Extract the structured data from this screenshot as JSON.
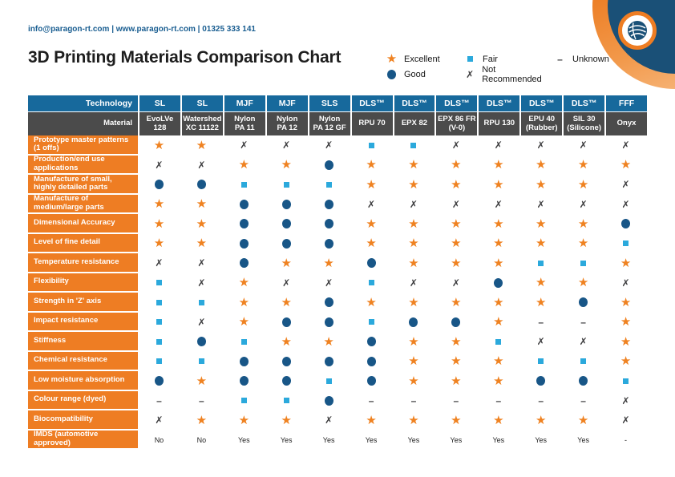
{
  "header": {
    "contact": "info@paragon-rt.com | www.paragon-rt.com | 01325 333 141",
    "title": "3D Printing Materials Comparison Chart"
  },
  "colors": {
    "accent_orange": "#EE7D23",
    "header_blue": "#17699C",
    "header_gray": "#4B4B4B",
    "star_orange": "#EF8221",
    "good_navy": "#185687",
    "fair_lightblue": "#2BA9DC",
    "cross_dark": "#3B3B3D",
    "contact_blue": "#1A5E91",
    "logo_navy": "#1A5077"
  },
  "symbols": {
    "excellent": "★",
    "not_recommended": "✗",
    "unknown": "–"
  },
  "legend": {
    "items": [
      {
        "key": "excellent",
        "label": "Excellent"
      },
      {
        "key": "fair",
        "label": "Fair"
      },
      {
        "key": "unknown",
        "label": "Unknown"
      },
      {
        "key": "good",
        "label": "Good"
      },
      {
        "key": "not_recommended",
        "label": "Not Recommended"
      }
    ]
  },
  "table": {
    "technology_label": "Technology",
    "material_label": "Material",
    "technologies": [
      "SL",
      "SL",
      "MJF",
      "MJF",
      "SLS",
      "DLS™",
      "DLS™",
      "DLS™",
      "DLS™",
      "DLS™",
      "DLS™",
      "FFF"
    ],
    "materials": [
      "EvoLVe\n128",
      "Watershed\nXC 11122",
      "Nylon\nPA 11",
      "Nylon\nPA 12",
      "Nylon\nPA 12 GF",
      "RPU 70",
      "EPX 82",
      "EPX 86 FR\n(V-0)",
      "RPU 130",
      "EPU 40\n(Rubber)",
      "SIL 30\n(Silicone)",
      "Onyx"
    ],
    "rows": [
      {
        "label": "Prototype master patterns (1 offs)",
        "values": [
          "excellent",
          "excellent",
          "not_recommended",
          "not_recommended",
          "not_recommended",
          "fair",
          "fair",
          "not_recommended",
          "not_recommended",
          "not_recommended",
          "not_recommended",
          "not_recommended"
        ]
      },
      {
        "label": "Production/end use applications",
        "values": [
          "not_recommended",
          "not_recommended",
          "excellent",
          "excellent",
          "good",
          "excellent",
          "excellent",
          "excellent",
          "excellent",
          "excellent",
          "excellent",
          "excellent"
        ]
      },
      {
        "label": "Manufacture of small, highly detailed parts",
        "values": [
          "good",
          "good",
          "fair",
          "fair",
          "fair",
          "excellent",
          "excellent",
          "excellent",
          "excellent",
          "excellent",
          "excellent",
          "not_recommended"
        ]
      },
      {
        "label": "Manufacture of medium/large parts",
        "values": [
          "excellent",
          "excellent",
          "good",
          "good",
          "good",
          "not_recommended",
          "not_recommended",
          "not_recommended",
          "not_recommended",
          "not_recommended",
          "not_recommended",
          "not_recommended"
        ]
      },
      {
        "label": "Dimensional Accuracy",
        "values": [
          "excellent",
          "excellent",
          "good",
          "good",
          "good",
          "excellent",
          "excellent",
          "excellent",
          "excellent",
          "excellent",
          "excellent",
          "good"
        ]
      },
      {
        "label": "Level of fine detail",
        "values": [
          "excellent",
          "excellent",
          "good",
          "good",
          "good",
          "excellent",
          "excellent",
          "excellent",
          "excellent",
          "excellent",
          "excellent",
          "fair"
        ]
      },
      {
        "label": "Temperature resistance",
        "values": [
          "not_recommended",
          "not_recommended",
          "good",
          "excellent",
          "excellent",
          "good",
          "excellent",
          "excellent",
          "excellent",
          "fair",
          "fair",
          "excellent"
        ]
      },
      {
        "label": "Flexibility",
        "values": [
          "fair",
          "not_recommended",
          "excellent",
          "not_recommended",
          "not_recommended",
          "fair",
          "not_recommended",
          "not_recommended",
          "good",
          "excellent",
          "excellent",
          "not_recommended"
        ]
      },
      {
        "label": "Strength in 'Z' axis",
        "values": [
          "fair",
          "fair",
          "excellent",
          "excellent",
          "good",
          "excellent",
          "excellent",
          "excellent",
          "excellent",
          "excellent",
          "good",
          "excellent"
        ]
      },
      {
        "label": "Impact resistance",
        "values": [
          "fair",
          "not_recommended",
          "excellent",
          "good",
          "good",
          "fair",
          "good",
          "good",
          "excellent",
          "unknown",
          "unknown",
          "excellent"
        ]
      },
      {
        "label": "Stiffness",
        "values": [
          "fair",
          "good",
          "fair",
          "excellent",
          "excellent",
          "good",
          "excellent",
          "excellent",
          "fair",
          "not_recommended",
          "not_recommended",
          "excellent"
        ]
      },
      {
        "label": "Chemical resistance",
        "values": [
          "fair",
          "fair",
          "good",
          "good",
          "good",
          "good",
          "excellent",
          "excellent",
          "excellent",
          "fair",
          "fair",
          "excellent"
        ]
      },
      {
        "label": "Low moisture absorption",
        "values": [
          "good",
          "excellent",
          "good",
          "good",
          "fair",
          "good",
          "excellent",
          "excellent",
          "excellent",
          "good",
          "good",
          "fair"
        ]
      },
      {
        "label": "Colour range (dyed)",
        "values": [
          "unknown",
          "unknown",
          "fair",
          "fair",
          "good",
          "unknown",
          "unknown",
          "unknown",
          "unknown",
          "unknown",
          "unknown",
          "not_recommended"
        ]
      },
      {
        "label": "Biocompatibility",
        "values": [
          "not_recommended",
          "excellent",
          "excellent",
          "excellent",
          "not_recommended",
          "excellent",
          "excellent",
          "excellent",
          "excellent",
          "excellent",
          "excellent",
          "not_recommended"
        ]
      },
      {
        "label": "IMDS (automotive approved)",
        "values": [
          "No",
          "No",
          "Yes",
          "Yes",
          "Yes",
          "Yes",
          "Yes",
          "Yes",
          "Yes",
          "Yes",
          "Yes",
          "-"
        ]
      }
    ]
  },
  "chart_data": {
    "type": "table",
    "title": "3D Printing Materials Comparison Chart",
    "rating_scale": {
      "excellent": "Excellent",
      "good": "Good",
      "fair": "Fair",
      "not_recommended": "Not Recommended",
      "unknown": "Unknown"
    },
    "column_technologies": [
      "SL",
      "SL",
      "MJF",
      "MJF",
      "SLS",
      "DLS™",
      "DLS™",
      "DLS™",
      "DLS™",
      "DLS™",
      "DLS™",
      "FFF"
    ],
    "column_materials": [
      "EvoLVe 128",
      "Watershed XC 11122",
      "Nylon PA 11",
      "Nylon PA 12",
      "Nylon PA 12 GF",
      "RPU 70",
      "EPX 82",
      "EPX 86 FR (V-0)",
      "RPU 130",
      "EPU 40 (Rubber)",
      "SIL 30 (Silicone)",
      "Onyx"
    ],
    "row_headers": [
      "Prototype master patterns (1 offs)",
      "Production/end use applications",
      "Manufacture of small, highly detailed parts",
      "Manufacture of medium/large parts",
      "Dimensional Accuracy",
      "Level of fine detail",
      "Temperature resistance",
      "Flexibility",
      "Strength in 'Z' axis",
      "Impact resistance",
      "Stiffness",
      "Chemical resistance",
      "Low moisture absorption",
      "Colour range (dyed)",
      "Biocompatibility",
      "IMDS (automotive approved)"
    ],
    "cells": [
      [
        "excellent",
        "excellent",
        "not_recommended",
        "not_recommended",
        "not_recommended",
        "fair",
        "fair",
        "not_recommended",
        "not_recommended",
        "not_recommended",
        "not_recommended",
        "not_recommended"
      ],
      [
        "not_recommended",
        "not_recommended",
        "excellent",
        "excellent",
        "good",
        "excellent",
        "excellent",
        "excellent",
        "excellent",
        "excellent",
        "excellent",
        "excellent"
      ],
      [
        "good",
        "good",
        "fair",
        "fair",
        "fair",
        "excellent",
        "excellent",
        "excellent",
        "excellent",
        "excellent",
        "excellent",
        "not_recommended"
      ],
      [
        "excellent",
        "excellent",
        "good",
        "good",
        "good",
        "not_recommended",
        "not_recommended",
        "not_recommended",
        "not_recommended",
        "not_recommended",
        "not_recommended",
        "not_recommended"
      ],
      [
        "excellent",
        "excellent",
        "good",
        "good",
        "good",
        "excellent",
        "excellent",
        "excellent",
        "excellent",
        "excellent",
        "excellent",
        "good"
      ],
      [
        "excellent",
        "excellent",
        "good",
        "good",
        "good",
        "excellent",
        "excellent",
        "excellent",
        "excellent",
        "excellent",
        "excellent",
        "fair"
      ],
      [
        "not_recommended",
        "not_recommended",
        "good",
        "excellent",
        "excellent",
        "good",
        "excellent",
        "excellent",
        "excellent",
        "fair",
        "fair",
        "excellent"
      ],
      [
        "fair",
        "not_recommended",
        "excellent",
        "not_recommended",
        "not_recommended",
        "fair",
        "not_recommended",
        "not_recommended",
        "good",
        "excellent",
        "excellent",
        "not_recommended"
      ],
      [
        "fair",
        "fair",
        "excellent",
        "excellent",
        "good",
        "excellent",
        "excellent",
        "excellent",
        "excellent",
        "excellent",
        "good",
        "excellent"
      ],
      [
        "fair",
        "not_recommended",
        "excellent",
        "good",
        "good",
        "fair",
        "good",
        "good",
        "excellent",
        "unknown",
        "unknown",
        "excellent"
      ],
      [
        "fair",
        "good",
        "fair",
        "excellent",
        "excellent",
        "good",
        "excellent",
        "excellent",
        "fair",
        "not_recommended",
        "not_recommended",
        "excellent"
      ],
      [
        "fair",
        "fair",
        "good",
        "good",
        "good",
        "good",
        "excellent",
        "excellent",
        "excellent",
        "fair",
        "fair",
        "excellent"
      ],
      [
        "good",
        "excellent",
        "good",
        "good",
        "fair",
        "good",
        "excellent",
        "excellent",
        "excellent",
        "good",
        "good",
        "fair"
      ],
      [
        "unknown",
        "unknown",
        "fair",
        "fair",
        "good",
        "unknown",
        "unknown",
        "unknown",
        "unknown",
        "unknown",
        "unknown",
        "not_recommended"
      ],
      [
        "not_recommended",
        "excellent",
        "excellent",
        "excellent",
        "not_recommended",
        "excellent",
        "excellent",
        "excellent",
        "excellent",
        "excellent",
        "excellent",
        "not_recommended"
      ],
      [
        "No",
        "No",
        "Yes",
        "Yes",
        "Yes",
        "Yes",
        "Yes",
        "Yes",
        "Yes",
        "Yes",
        "Yes",
        "-"
      ]
    ]
  }
}
